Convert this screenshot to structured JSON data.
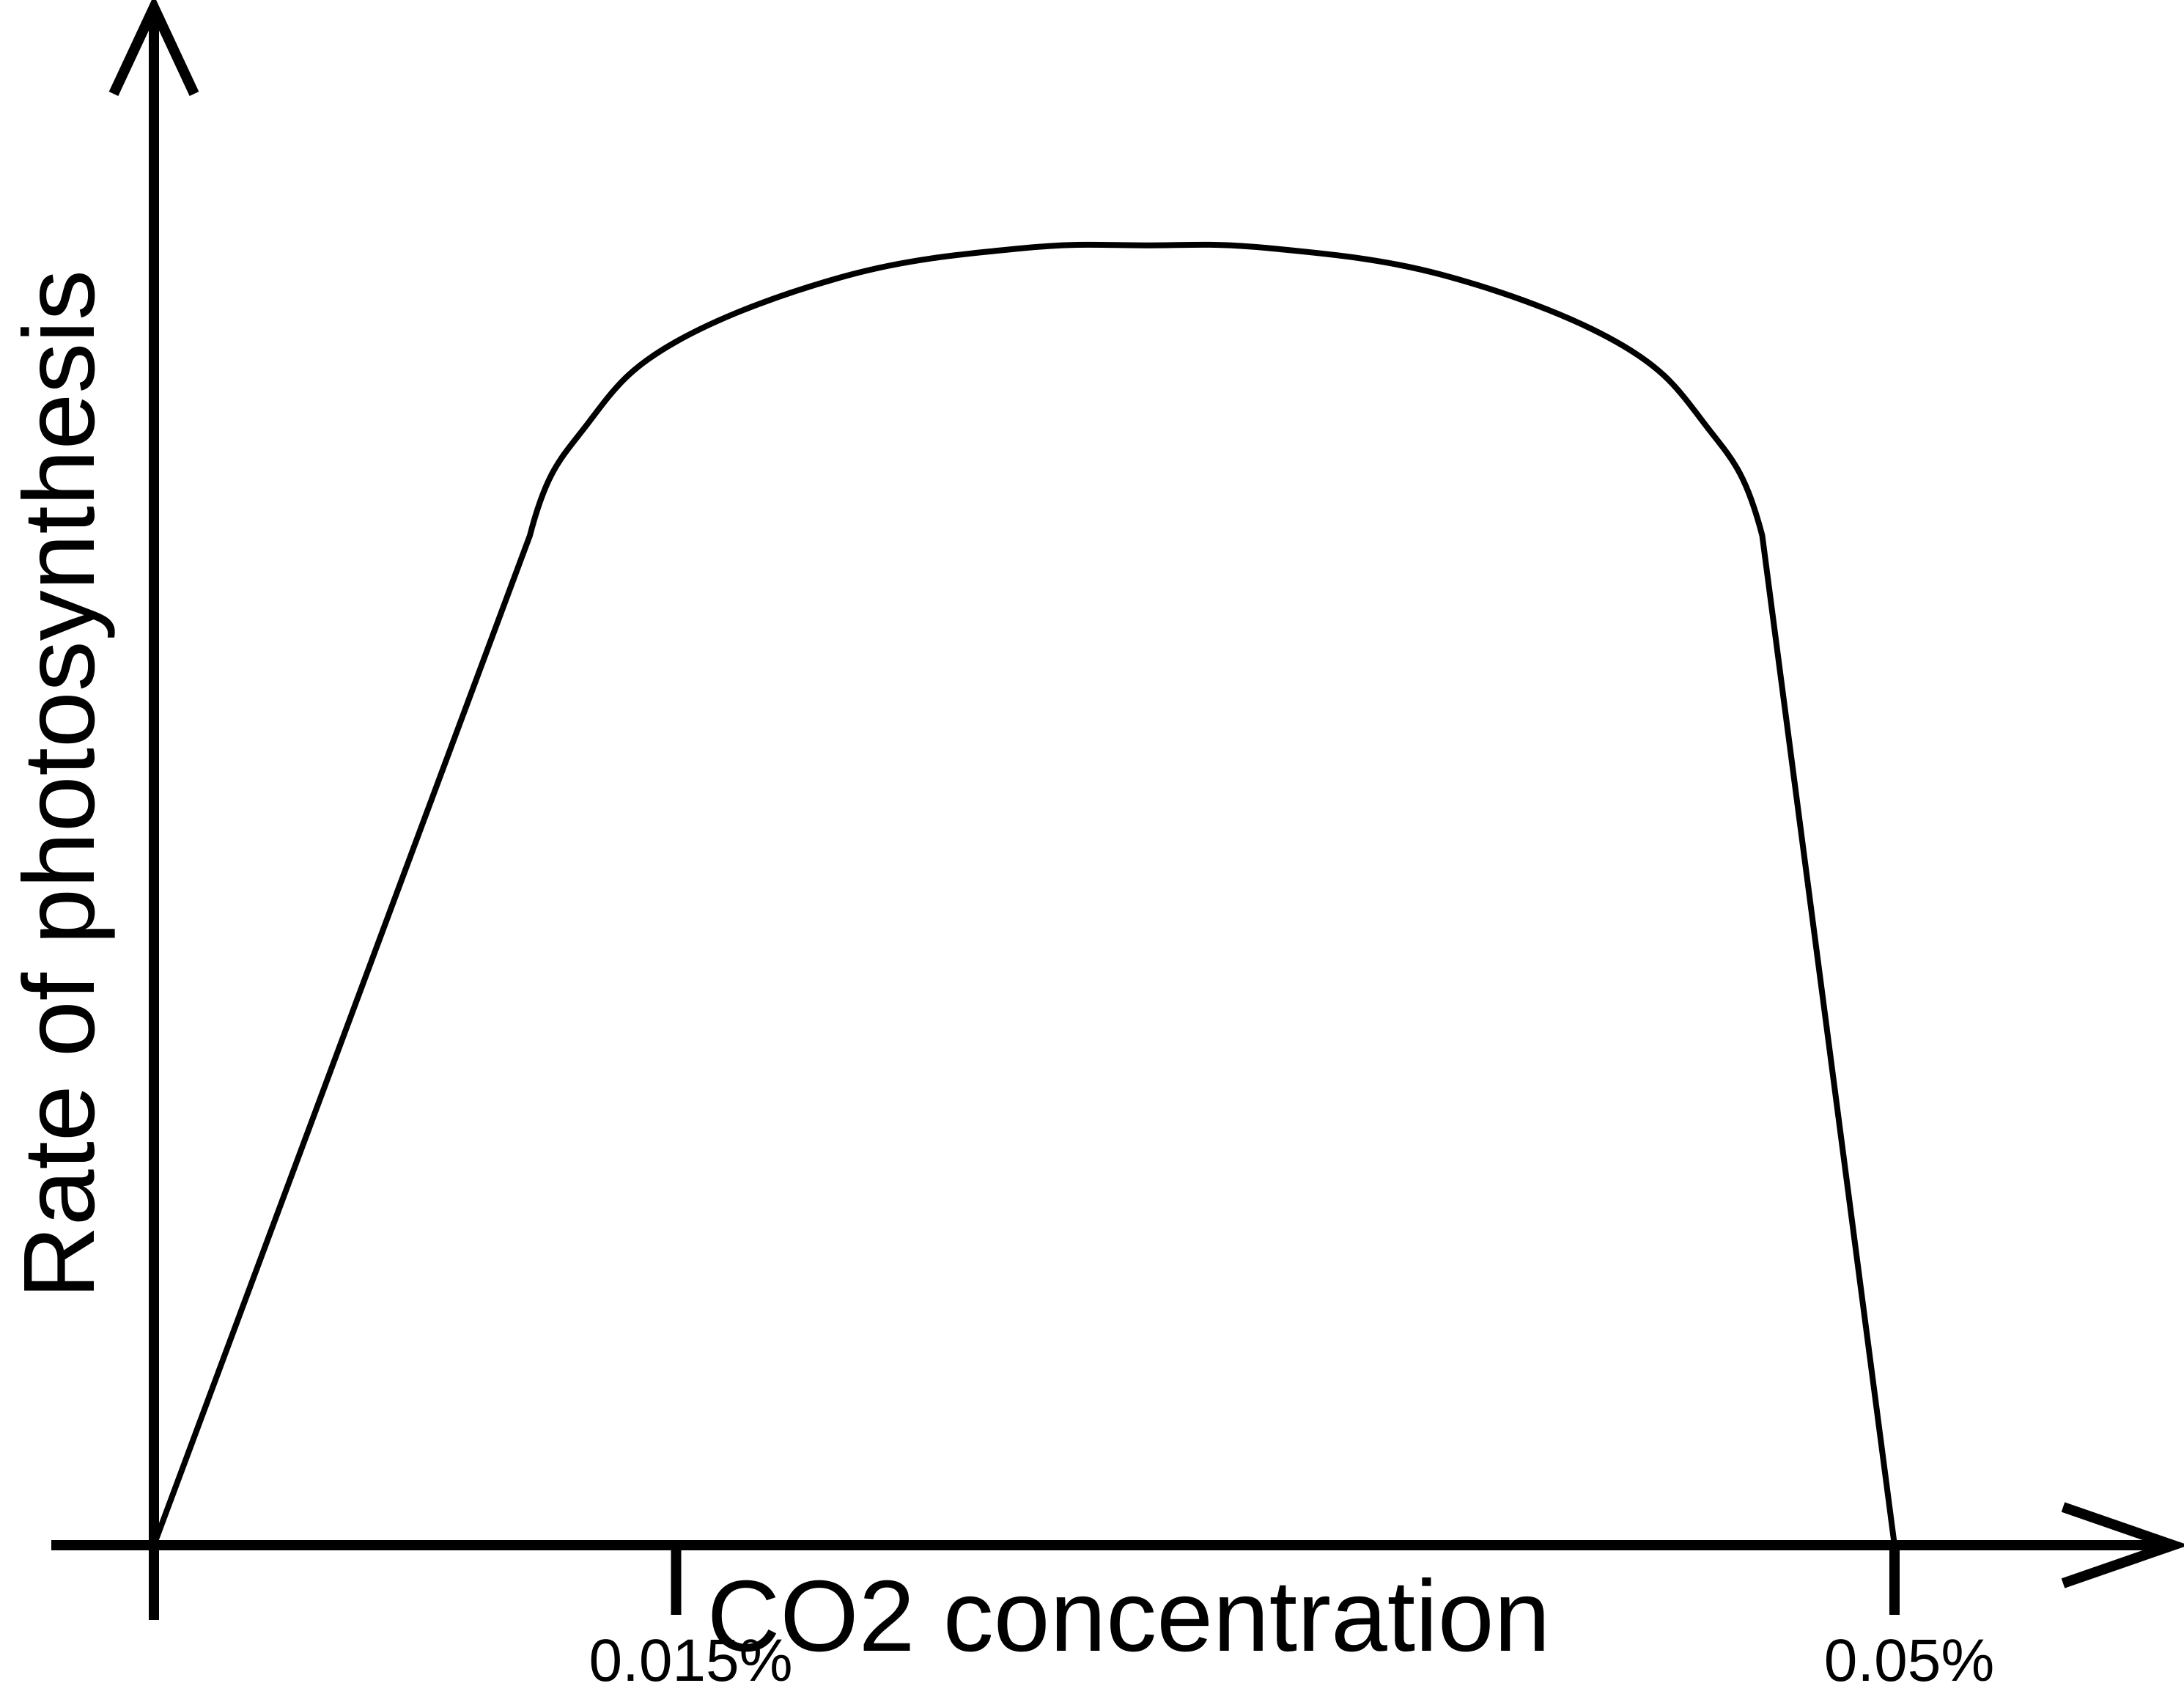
{
  "chart_data": {
    "type": "line",
    "title": "",
    "xlabel": "CO2 concentration",
    "ylabel": "Rate of photosynthesis",
    "x_ticks": [
      {
        "value": 0.015,
        "label": "0.015%"
      },
      {
        "value": 0.05,
        "label": "0.05%"
      }
    ],
    "xlim": [
      0,
      0.058
    ],
    "ylim": [
      0,
      1.15
    ],
    "grid": false,
    "legend": "none",
    "series": [
      {
        "x": [
          0,
          0.0108,
          0.0125,
          0.015,
          0.02,
          0.025,
          0.0285,
          0.032,
          0.037,
          0.042,
          0.0445,
          0.0462,
          0.05
        ],
        "y": [
          0,
          0.755,
          0.84,
          0.9,
          0.95,
          0.97,
          0.972,
          0.97,
          0.95,
          0.9,
          0.84,
          0.755,
          0
        ],
        "color": "#000000"
      }
    ]
  }
}
